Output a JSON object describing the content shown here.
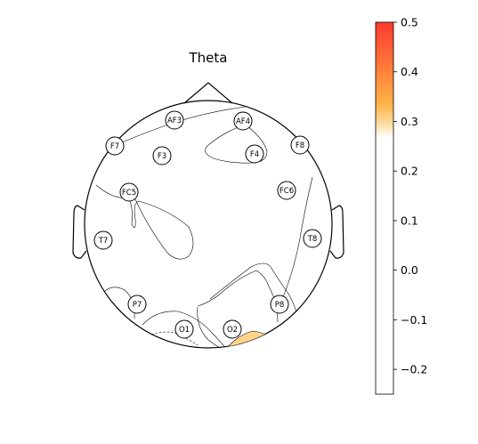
{
  "title": "Theta",
  "electrodes": [
    {
      "name": "AF3"
    },
    {
      "name": "AF4"
    },
    {
      "name": "F7"
    },
    {
      "name": "F8"
    },
    {
      "name": "F3"
    },
    {
      "name": "F4"
    },
    {
      "name": "FC5"
    },
    {
      "name": "FC6"
    },
    {
      "name": "T7"
    },
    {
      "name": "T8"
    },
    {
      "name": "P7"
    },
    {
      "name": "P8"
    },
    {
      "name": "O1"
    },
    {
      "name": "O2"
    }
  ],
  "colorbar": {
    "ticks": [
      "0.5",
      "0.4",
      "0.3",
      "0.2",
      "0.1",
      "0.0",
      "−0.1",
      "−0.2"
    ],
    "range": [
      -0.25,
      0.5
    ],
    "colors": {
      "top": "#ff3a2e",
      "mid": "#ffb347",
      "white": "#ffffff"
    }
  }
}
